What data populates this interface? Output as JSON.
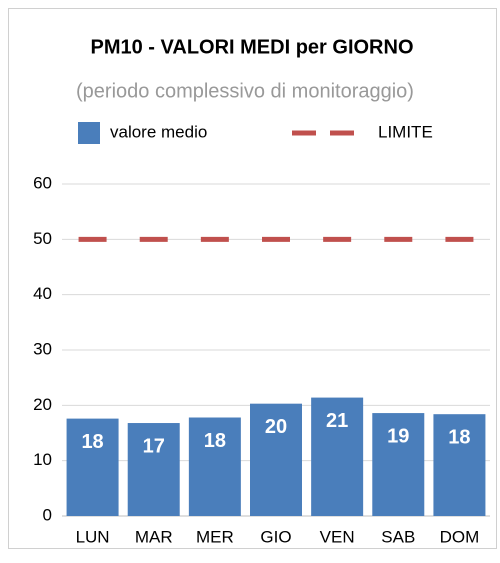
{
  "chart_data": {
    "type": "bar",
    "title": "PM10 - VALORI MEDI per GIORNO",
    "subtitle": "(periodo complessivo di monitoraggio)",
    "categories": [
      "LUN",
      "MAR",
      "MER",
      "GIO",
      "VEN",
      "SAB",
      "DOM"
    ],
    "series": [
      {
        "name": "valore medio",
        "type": "bar",
        "color": "#4a7ebb",
        "values": [
          17.6,
          16.8,
          17.8,
          20.3,
          21.4,
          18.6,
          18.4
        ],
        "value_labels": [
          "18",
          "17",
          "18",
          "20",
          "21",
          "19",
          "18"
        ]
      },
      {
        "name": "LIMITE",
        "type": "line",
        "dashed": true,
        "color": "#c0504d",
        "values": [
          50,
          50,
          50,
          50,
          50,
          50,
          50
        ]
      }
    ],
    "ylim": [
      0,
      60
    ],
    "yticks": [
      0,
      10,
      20,
      30,
      40,
      50,
      60
    ],
    "grid": true,
    "legend": "top"
  }
}
